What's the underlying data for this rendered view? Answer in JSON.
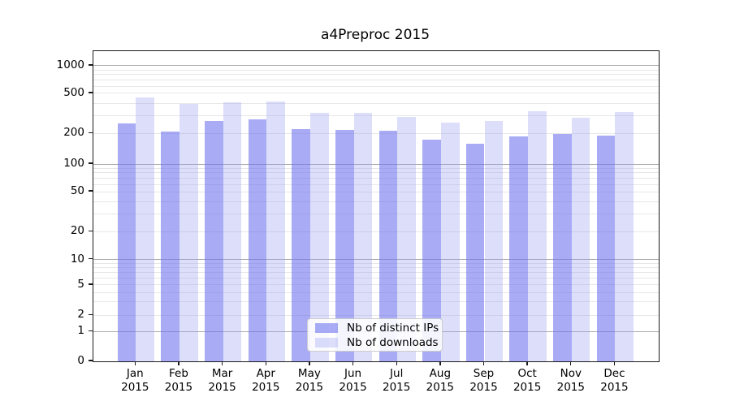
{
  "chart_data": {
    "type": "bar",
    "title": "a4Preproc 2015",
    "categories": [
      "Jan",
      "Feb",
      "Mar",
      "Apr",
      "May",
      "Jun",
      "Jul",
      "Aug",
      "Sep",
      "Oct",
      "Nov",
      "Dec"
    ],
    "x_sublabel": "2015",
    "series": [
      {
        "name": "Nb of distinct IPs",
        "color": "rgba(112,117,238,0.6)",
        "color_hex_on_white": "#a9acf5",
        "values": [
          250,
          208,
          268,
          278,
          220,
          216,
          212,
          174,
          159,
          189,
          198,
          191
        ]
      },
      {
        "name": "Nb of downloads",
        "color": "rgba(155,161,241,0.35)",
        "color_hex_on_white": "#dcdef9",
        "values": [
          455,
          390,
          408,
          413,
          319,
          319,
          294,
          255,
          265,
          335,
          285,
          325
        ]
      }
    ],
    "y_axis": {
      "scale": "symlog-like",
      "tick_values": [
        0,
        1,
        2,
        5,
        10,
        20,
        50,
        100,
        200,
        500,
        1000
      ],
      "tick_labels": [
        "0",
        "1",
        "2",
        "5",
        "10",
        "20",
        "50",
        "100",
        "200",
        "500",
        "1000"
      ],
      "major_gridlines": [
        1,
        10,
        100,
        1000
      ],
      "minor_gridlines": [
        2,
        3,
        4,
        5,
        6,
        7,
        8,
        9,
        20,
        30,
        40,
        50,
        60,
        70,
        80,
        90,
        200,
        300,
        400,
        500,
        600,
        700,
        800,
        900
      ],
      "anchors_value_to_fraction": [
        [
          0,
          1.0
        ],
        [
          1,
          0.9039
        ],
        [
          2,
          0.8516
        ],
        [
          5,
          0.7539
        ],
        [
          10,
          0.6715
        ],
        [
          20,
          0.5819
        ],
        [
          50,
          0.4529
        ],
        [
          100,
          0.3639
        ],
        [
          200,
          0.2657
        ],
        [
          500,
          0.1361
        ],
        [
          1000,
          0.0471
        ]
      ],
      "ylim_top_label": "1000"
    },
    "grid": true,
    "legend_position": "lower center"
  },
  "colors": {
    "bar_distinct_ips": "#a9acf5",
    "bar_downloads": "#dcdef9",
    "major_grid": "#aaaaaa",
    "minor_grid": "#e7e7e7",
    "spine": "#1a1a1a",
    "text": "#000000",
    "legend_border": "#cccccc",
    "background": "#ffffff"
  }
}
